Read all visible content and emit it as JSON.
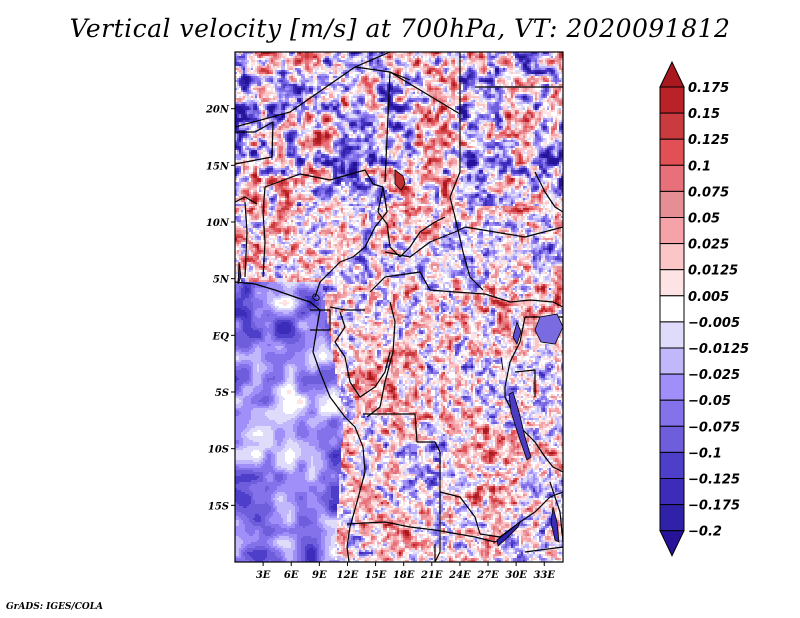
{
  "title": "Vertical velocity [m/s] at 700hPa, VT: 2020091812",
  "footer": "GrADS: IGES/COLA",
  "map": {
    "variable": "Vertical velocity",
    "units": "m/s",
    "level": "700hPa",
    "valid_time": "2020091812",
    "lon_range": [
      0,
      35
    ],
    "lat_range": [
      -20,
      25
    ],
    "lat_ticks": [
      {
        "value": 20,
        "label": "20N"
      },
      {
        "value": 15,
        "label": "15N"
      },
      {
        "value": 10,
        "label": "10N"
      },
      {
        "value": 5,
        "label": "5N"
      },
      {
        "value": 0,
        "label": "EQ"
      },
      {
        "value": -5,
        "label": "5S"
      },
      {
        "value": -10,
        "label": "10S"
      },
      {
        "value": -15,
        "label": "15S"
      }
    ],
    "lon_ticks": [
      {
        "value": 3,
        "label": "3E"
      },
      {
        "value": 6,
        "label": "6E"
      },
      {
        "value": 9,
        "label": "9E"
      },
      {
        "value": 12,
        "label": "12E"
      },
      {
        "value": 15,
        "label": "15E"
      },
      {
        "value": 18,
        "label": "18E"
      },
      {
        "value": 21,
        "label": "21E"
      },
      {
        "value": 24,
        "label": "24E"
      },
      {
        "value": 27,
        "label": "27E"
      },
      {
        "value": 30,
        "label": "30E"
      },
      {
        "value": 33,
        "label": "33E"
      }
    ]
  },
  "colorbar": {
    "orientation": "vertical",
    "placement": "right",
    "levels": [
      {
        "label": "0.175"
      },
      {
        "label": "0.15"
      },
      {
        "label": "0.125"
      },
      {
        "label": "0.1"
      },
      {
        "label": "0.075"
      },
      {
        "label": "0.05"
      },
      {
        "label": "0.025"
      },
      {
        "label": "0.0125"
      },
      {
        "label": "0.005"
      },
      {
        "label": "−0.005"
      },
      {
        "label": "−0.0125"
      },
      {
        "label": "−0.025"
      },
      {
        "label": "−0.05"
      },
      {
        "label": "−0.075"
      },
      {
        "label": "−0.1"
      },
      {
        "label": "−0.125"
      },
      {
        "label": "−0.175"
      },
      {
        "label": "−0.2"
      }
    ],
    "colors": [
      "#a8181e",
      "#b92226",
      "#c93b3f",
      "#e05055",
      "#e8707a",
      "#e58f95",
      "#f5a3a8",
      "#fbc6c8",
      "#fde3e4",
      "#ffffff",
      "#dedcfa",
      "#c0b8fb",
      "#a08ff8",
      "#8472ea",
      "#6e5edb",
      "#4d3fc9",
      "#3d2cba",
      "#2f22a8",
      "#27129a"
    ]
  }
}
